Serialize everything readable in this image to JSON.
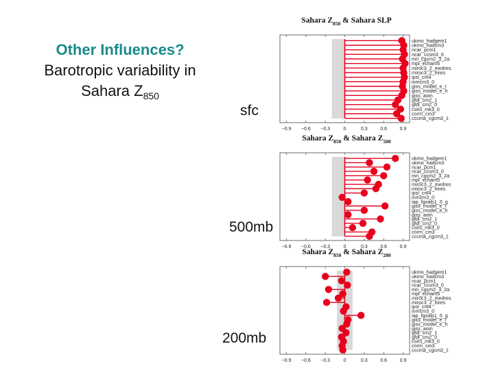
{
  "slide": {
    "title_line1": "Other Influences?",
    "title_line2": "Barotropic variability in",
    "title_line3_main": "Sahara Z",
    "title_line3_sub": "850"
  },
  "labels": {
    "sfc": "sfc",
    "mb500": "500mb",
    "mb200": "200mb"
  },
  "colors": {
    "title": "#1a8a8a",
    "marker": "#e8001c",
    "band": "#d9d9d9"
  },
  "chart_data": [
    {
      "type": "scatter",
      "title_a": "Sahara Z",
      "title_a_sub": "850",
      "title_b": " & Sahara SLP",
      "title_b_sub": "",
      "xlim": [
        -1.0,
        1.0
      ],
      "xticks": [
        -0.9,
        -0.6,
        -0.3,
        0,
        0.3,
        0.6,
        0.9
      ],
      "xtick_labels": [
        "−0.9",
        "−0.6",
        "−0.3",
        "0",
        "0.3",
        "0.6",
        "0.9"
      ],
      "band": [
        -0.2,
        0
      ],
      "models": [
        "ukmo_hadgem1",
        "ukmo_hadcm3",
        "ncar_pcm1",
        "ncar_ccsm3_0",
        "mri_cgcm2_3_2a",
        "mpi_echam5",
        "miroc3_2_medres",
        "miroc3_2_hires",
        "ipsl_cm4",
        "inmcm3_0",
        "giss_model_e_r",
        "giss_model_e_h",
        "giss_aom",
        "gfdl_cm2_1",
        "gfdl_cm2_0",
        "csiro_mk3_0",
        "cnrm_cm3",
        "cccma_cgcm3_1"
      ],
      "values": [
        0.88,
        0.91,
        0.9,
        0.92,
        0.89,
        0.93,
        0.9,
        0.91,
        0.92,
        0.9,
        0.89,
        0.91,
        0.88,
        0.82,
        0.78,
        0.86,
        0.8,
        0.87
      ]
    },
    {
      "type": "scatter",
      "title_a": "Sahara Z",
      "title_a_sub": "850",
      "title_b": " & Sahara Z",
      "title_b_sub": "500",
      "xlim": [
        -1.0,
        1.0
      ],
      "xticks": [
        -0.9,
        -0.6,
        -0.3,
        0,
        0.3,
        0.6,
        0.9
      ],
      "xtick_labels": [
        "−0.9",
        "−0.6",
        "−0.3",
        "0",
        "0.3",
        "0.6",
        "0.9"
      ],
      "band": [
        -0.2,
        0
      ],
      "models": [
        "ukmo_hadgem1",
        "ukmo_hadcm3",
        "ncar_pcm1",
        "ncar_ccsm3_0",
        "mri_cgcm2_3_2a",
        "mpi_echam5",
        "miroc3_2_medres",
        "miroc3_2_hires",
        "ipsl_cm4",
        "inmcm3_0",
        "iap_fgoals1_0_g",
        "giss_model_e_r",
        "giss_model_e_h",
        "giss_aom",
        "gfdl_cm2_1",
        "gfdl_cm2_0",
        "csiro_mk3_0",
        "cnrm_cm3",
        "cccma_cgcm3_1"
      ],
      "values": [
        0.78,
        0.38,
        0.65,
        0.45,
        0.6,
        0.35,
        0.52,
        0.48,
        0.3,
        -0.04,
        0.05,
        0.62,
        0.3,
        0.05,
        0.55,
        0.28,
        0.12,
        0.42,
        0.38
      ]
    },
    {
      "type": "scatter",
      "title_a": "Sahara Z",
      "title_a_sub": "850",
      "title_b": " & Sahara Z",
      "title_b_sub": "200",
      "xlim": [
        -1.0,
        1.0
      ],
      "xticks": [
        -0.9,
        -0.6,
        -0.3,
        0,
        0.3,
        0.6,
        0.9
      ],
      "xtick_labels": [
        "−0.9",
        "−0.6",
        "−0.3",
        "0",
        "0.3",
        "0.6",
        "0.9"
      ],
      "band": [
        -0.12,
        0.12
      ],
      "models": [
        "ukmo_hadgem1",
        "ukmo_hadcm3",
        "ncar_pcm1",
        "ncar_ccsm3_0",
        "mri_cgcm2_3_2a",
        "mpi_echam5",
        "miroc3_2_medres",
        "miroc3_2_hires",
        "ipsl_cm4",
        "inmcm3_0",
        "iap_fgoals1_0_g",
        "giss_model_e_r",
        "giss_model_e_h",
        "giss_aom",
        "gfdl_cm2_1",
        "gfdl_cm2_0",
        "csiro_mk3_0",
        "cnrm_cm3",
        "cccma_cgcm3_1"
      ],
      "values": [
        0.03,
        -0.3,
        -0.05,
        0.04,
        -0.25,
        -0.03,
        -0.1,
        -0.28,
        0.02,
        -0.02,
        0.25,
        0.05,
        0.03,
        -0.04,
        0.02,
        -0.05,
        -0.02,
        -0.04,
        -0.03
      ]
    }
  ]
}
